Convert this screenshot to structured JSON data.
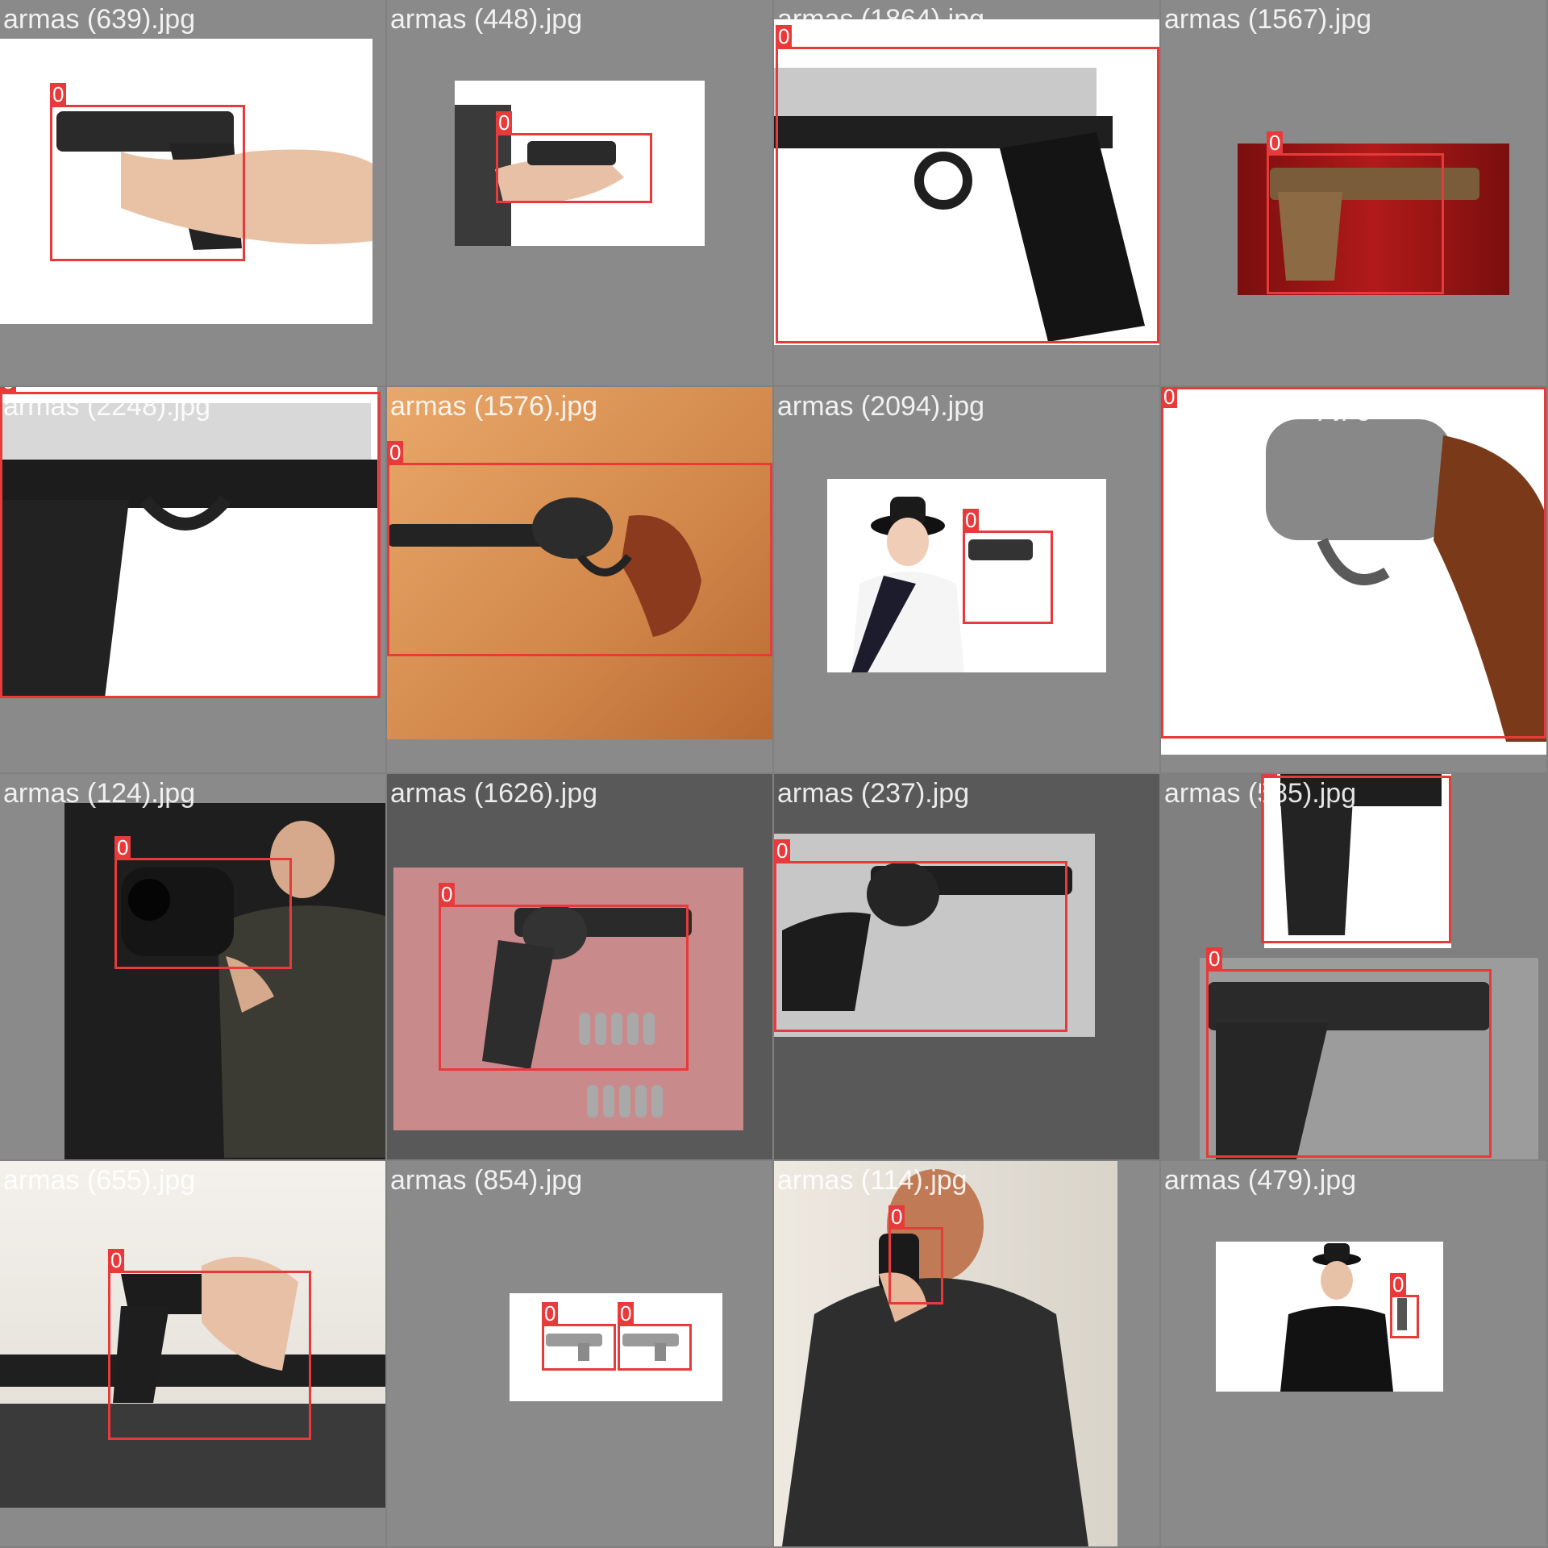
{
  "colors": {
    "box": "#e83a3a",
    "label_text": "#ffffff",
    "tile_bg": "#808080"
  },
  "tiles": [
    {
      "filename": "armas (639).jpg",
      "boxes": [
        {
          "class_label": "0"
        }
      ]
    },
    {
      "filename": "armas (448).jpg",
      "boxes": [
        {
          "class_label": "0"
        }
      ]
    },
    {
      "filename": "armas (1864).jpg",
      "boxes": [
        {
          "class_label": "0"
        }
      ]
    },
    {
      "filename": "armas (1567).jpg",
      "boxes": [
        {
          "class_label": "0"
        }
      ]
    },
    {
      "filename": "armas (2248).jpg",
      "boxes": [
        {
          "class_label": "0"
        }
      ]
    },
    {
      "filename": "armas (1576).jpg",
      "boxes": [
        {
          "class_label": "0"
        }
      ]
    },
    {
      "filename": "armas (2094).jpg",
      "boxes": [
        {
          "class_label": "0"
        }
      ]
    },
    {
      "filename": "armas (2233).jpg",
      "boxes": [
        {
          "class_label": "0"
        }
      ]
    },
    {
      "filename": "armas (124).jpg",
      "boxes": [
        {
          "class_label": "0"
        }
      ]
    },
    {
      "filename": "armas (1626).jpg",
      "boxes": [
        {
          "class_label": "0"
        }
      ]
    },
    {
      "filename": "armas (237).jpg",
      "boxes": [
        {
          "class_label": "0"
        }
      ]
    },
    {
      "filename": "armas (585).jpg",
      "boxes": [
        {
          "class_label": "0"
        },
        {
          "class_label": "0"
        }
      ]
    },
    {
      "filename": "armas (655).jpg",
      "boxes": [
        {
          "class_label": "0"
        }
      ]
    },
    {
      "filename": "armas (854).jpg",
      "boxes": [
        {
          "class_label": "0"
        },
        {
          "class_label": "0"
        }
      ]
    },
    {
      "filename": "armas (114).jpg",
      "boxes": [
        {
          "class_label": "0"
        }
      ]
    },
    {
      "filename": "armas (479).jpg",
      "boxes": [
        {
          "class_label": "0"
        }
      ]
    }
  ]
}
